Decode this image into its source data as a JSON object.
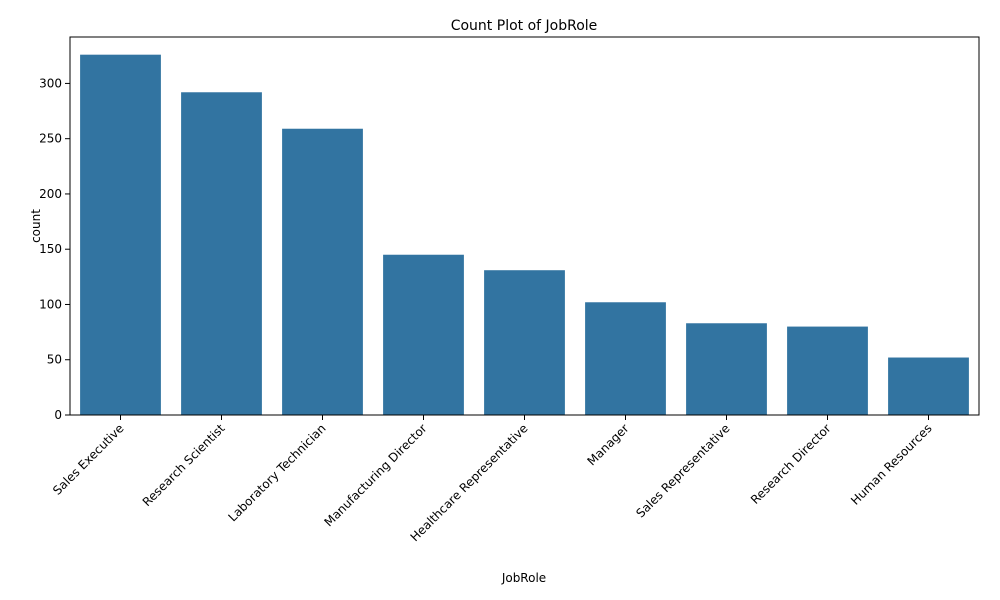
{
  "chart_data": {
    "type": "bar",
    "title": "Count Plot of JobRole",
    "xlabel": "JobRole",
    "ylabel": "count",
    "categories": [
      "Sales Executive",
      "Research Scientist",
      "Laboratory Technician",
      "Manufacturing Director",
      "Healthcare Representative",
      "Manager",
      "Sales Representative",
      "Research Director",
      "Human Resources"
    ],
    "values": [
      326,
      292,
      259,
      145,
      131,
      102,
      83,
      80,
      52
    ],
    "ylim": [
      0,
      342
    ],
    "yticks": [
      0,
      50,
      100,
      150,
      200,
      250,
      300
    ],
    "bar_color": "#3274a1",
    "grid": false,
    "legend": "none"
  }
}
